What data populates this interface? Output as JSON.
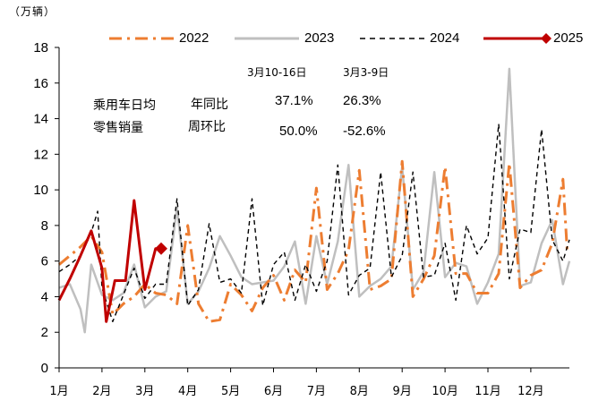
{
  "unit_label": "（万辆）",
  "annotations": {
    "label_line1": "乘用车日均",
    "label_line2": "零售销量",
    "row_yoy": "年同比",
    "row_mom": "周环比",
    "col1_header": "3月10-16日",
    "col2_header": "3月3-9日",
    "yoy_col1": "37.1%",
    "yoy_col2": "26.3%",
    "mom_col1": "50.0%",
    "mom_col2": "-52.6%"
  },
  "colors": {
    "s2022": "#ed7d31",
    "s2023": "#bfbfbf",
    "s2024": "#000000",
    "s2025": "#c00000",
    "axis": "#000000"
  },
  "chart_data": {
    "type": "line",
    "x_axis": "month (1–13 scale, tick at start of each month)",
    "ylim": [
      0,
      18
    ],
    "yticks": [
      0,
      2,
      4,
      6,
      8,
      10,
      12,
      14,
      16,
      18
    ],
    "xtick_labels": [
      "1月",
      "2月",
      "3月",
      "4月",
      "5月",
      "6月",
      "7月",
      "8月",
      "9月",
      "10月",
      "11月",
      "12月"
    ],
    "legend_position": "top",
    "series": [
      {
        "name": "2022",
        "style": "dash-dot",
        "points": [
          [
            1.0,
            5.8
          ],
          [
            1.25,
            6.3
          ],
          [
            1.5,
            6.8
          ],
          [
            1.75,
            7.4
          ],
          [
            2.0,
            6.5
          ],
          [
            2.25,
            3.0
          ],
          [
            2.5,
            3.6
          ],
          [
            2.75,
            4.0
          ],
          [
            3.0,
            4.7
          ],
          [
            3.25,
            4.2
          ],
          [
            3.5,
            4.1
          ],
          [
            3.75,
            3.6
          ],
          [
            4.0,
            8.0
          ],
          [
            4.25,
            3.6
          ],
          [
            4.5,
            2.6
          ],
          [
            4.75,
            2.7
          ],
          [
            5.0,
            4.7
          ],
          [
            5.25,
            4.1
          ],
          [
            5.5,
            3.2
          ],
          [
            5.75,
            4.5
          ],
          [
            6.0,
            5.2
          ],
          [
            6.25,
            3.8
          ],
          [
            6.5,
            5.5
          ],
          [
            6.75,
            4.8
          ],
          [
            7.0,
            10.1
          ],
          [
            7.25,
            4.4
          ],
          [
            7.5,
            5.3
          ],
          [
            7.75,
            6.6
          ],
          [
            8.0,
            11.1
          ],
          [
            8.25,
            4.4
          ],
          [
            8.5,
            4.6
          ],
          [
            8.75,
            5.0
          ],
          [
            9.0,
            11.6
          ],
          [
            9.25,
            4.0
          ],
          [
            9.5,
            5.0
          ],
          [
            9.75,
            6.3
          ],
          [
            10.0,
            11.3
          ],
          [
            10.25,
            5.3
          ],
          [
            10.5,
            5.3
          ],
          [
            10.75,
            4.2
          ],
          [
            11.0,
            4.2
          ],
          [
            11.25,
            5.3
          ],
          [
            11.5,
            11.5
          ],
          [
            11.75,
            4.5
          ],
          [
            12.0,
            5.2
          ],
          [
            12.25,
            5.5
          ],
          [
            12.5,
            7.0
          ],
          [
            12.75,
            10.6
          ],
          [
            12.85,
            6.5
          ]
        ]
      },
      {
        "name": "2023",
        "style": "solid",
        "points": [
          [
            1.0,
            4.5
          ],
          [
            1.25,
            4.7
          ],
          [
            1.5,
            3.3
          ],
          [
            1.6,
            2.0
          ],
          [
            1.75,
            5.8
          ],
          [
            2.0,
            4.1
          ],
          [
            2.25,
            3.8
          ],
          [
            2.5,
            4.2
          ],
          [
            2.75,
            5.8
          ],
          [
            3.0,
            3.4
          ],
          [
            3.25,
            4.0
          ],
          [
            3.5,
            4.3
          ],
          [
            3.75,
            9.0
          ],
          [
            4.0,
            3.6
          ],
          [
            4.25,
            4.3
          ],
          [
            4.5,
            5.6
          ],
          [
            4.75,
            7.4
          ],
          [
            5.0,
            6.3
          ],
          [
            5.25,
            5.1
          ],
          [
            5.5,
            4.7
          ],
          [
            5.75,
            4.8
          ],
          [
            6.0,
            4.9
          ],
          [
            6.25,
            5.7
          ],
          [
            6.5,
            7.1
          ],
          [
            6.75,
            3.6
          ],
          [
            7.0,
            7.4
          ],
          [
            7.25,
            4.7
          ],
          [
            7.5,
            7.1
          ],
          [
            7.75,
            11.4
          ],
          [
            8.0,
            4.0
          ],
          [
            8.25,
            4.6
          ],
          [
            8.5,
            5.0
          ],
          [
            8.75,
            5.7
          ],
          [
            9.0,
            11.3
          ],
          [
            9.25,
            4.4
          ],
          [
            9.5,
            5.4
          ],
          [
            9.75,
            11.0
          ],
          [
            10.0,
            5.1
          ],
          [
            10.25,
            5.9
          ],
          [
            10.5,
            5.7
          ],
          [
            10.75,
            3.6
          ],
          [
            11.0,
            4.8
          ],
          [
            11.25,
            6.4
          ],
          [
            11.5,
            16.8
          ],
          [
            11.75,
            4.6
          ],
          [
            12.0,
            4.8
          ],
          [
            12.25,
            7.0
          ],
          [
            12.5,
            8.3
          ],
          [
            12.75,
            4.7
          ],
          [
            12.9,
            6.0
          ]
        ]
      },
      {
        "name": "2024",
        "style": "dashed",
        "points": [
          [
            1.0,
            5.4
          ],
          [
            1.25,
            5.8
          ],
          [
            1.5,
            6.3
          ],
          [
            1.75,
            7.6
          ],
          [
            1.9,
            8.8
          ],
          [
            2.0,
            4.5
          ],
          [
            2.25,
            2.6
          ],
          [
            2.5,
            4.1
          ],
          [
            2.75,
            5.6
          ],
          [
            3.0,
            3.9
          ],
          [
            3.25,
            4.7
          ],
          [
            3.5,
            4.7
          ],
          [
            3.75,
            9.5
          ],
          [
            4.0,
            3.5
          ],
          [
            4.25,
            4.4
          ],
          [
            4.5,
            8.1
          ],
          [
            4.75,
            4.8
          ],
          [
            5.0,
            5.0
          ],
          [
            5.25,
            4.2
          ],
          [
            5.5,
            9.5
          ],
          [
            5.75,
            3.5
          ],
          [
            6.0,
            5.8
          ],
          [
            6.25,
            6.5
          ],
          [
            6.5,
            3.8
          ],
          [
            6.75,
            5.8
          ],
          [
            7.0,
            4.3
          ],
          [
            7.25,
            6.0
          ],
          [
            7.5,
            11.4
          ],
          [
            7.75,
            4.1
          ],
          [
            8.0,
            5.2
          ],
          [
            8.25,
            5.6
          ],
          [
            8.5,
            11.0
          ],
          [
            8.75,
            5.1
          ],
          [
            9.0,
            6.3
          ],
          [
            9.25,
            11.0
          ],
          [
            9.5,
            5.1
          ],
          [
            9.75,
            5.2
          ],
          [
            10.0,
            7.0
          ],
          [
            10.25,
            3.8
          ],
          [
            10.5,
            8.0
          ],
          [
            10.75,
            6.4
          ],
          [
            11.0,
            7.3
          ],
          [
            11.25,
            13.7
          ],
          [
            11.5,
            5.0
          ],
          [
            11.75,
            7.8
          ],
          [
            12.0,
            7.6
          ],
          [
            12.25,
            13.4
          ],
          [
            12.5,
            7.2
          ],
          [
            12.75,
            6.0
          ],
          [
            12.9,
            7.2
          ]
        ]
      },
      {
        "name": "2025",
        "style": "solid-thick",
        "points": [
          [
            1.0,
            3.8
          ],
          [
            1.25,
            5.0
          ],
          [
            1.5,
            6.3
          ],
          [
            1.75,
            7.7
          ],
          [
            2.0,
            5.6
          ],
          [
            2.1,
            2.6
          ],
          [
            2.3,
            4.9
          ],
          [
            2.55,
            4.9
          ],
          [
            2.75,
            9.4
          ],
          [
            3.0,
            4.4
          ],
          [
            3.25,
            6.7
          ],
          [
            3.38,
            6.7
          ]
        ]
      }
    ]
  }
}
